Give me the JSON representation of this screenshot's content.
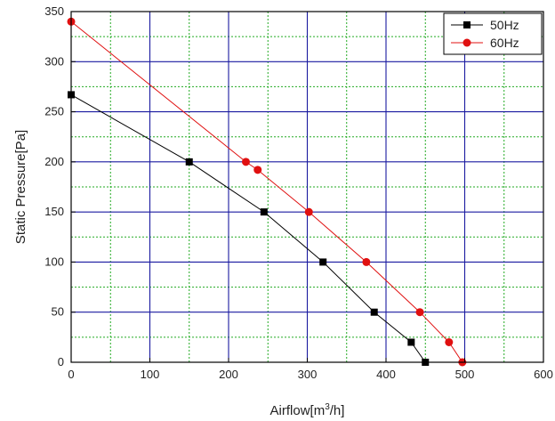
{
  "chart_data": {
    "type": "line",
    "title": "",
    "xlabel": "Airflow[m³/h]",
    "xlabel_parts": {
      "prefix": "Airflow[m",
      "sup": "3",
      "suffix": "/h]"
    },
    "ylabel": "Static Pressure[Pa]",
    "xlim": [
      0,
      600
    ],
    "ylim": [
      0,
      350
    ],
    "x_ticks": [
      0,
      100,
      200,
      300,
      400,
      500,
      600
    ],
    "y_ticks": [
      0,
      50,
      100,
      150,
      200,
      250,
      300,
      350
    ],
    "major_grid_color": "#1a1aa0",
    "minor_grid_color": "#22aa22",
    "minor_grid_style": "dotted",
    "legend_position": "top-right",
    "series": [
      {
        "name": "50Hz",
        "color": "#000000",
        "marker": "square",
        "x": [
          0,
          150,
          245,
          320,
          385,
          432,
          450
        ],
        "y": [
          267,
          200,
          150,
          100,
          50,
          20,
          0
        ]
      },
      {
        "name": "60Hz",
        "color": "#e01010",
        "marker": "circle",
        "x": [
          0,
          222,
          237,
          302,
          375,
          443,
          480,
          497
        ],
        "y": [
          340,
          200,
          192,
          150,
          100,
          50,
          20,
          0
        ]
      }
    ]
  }
}
